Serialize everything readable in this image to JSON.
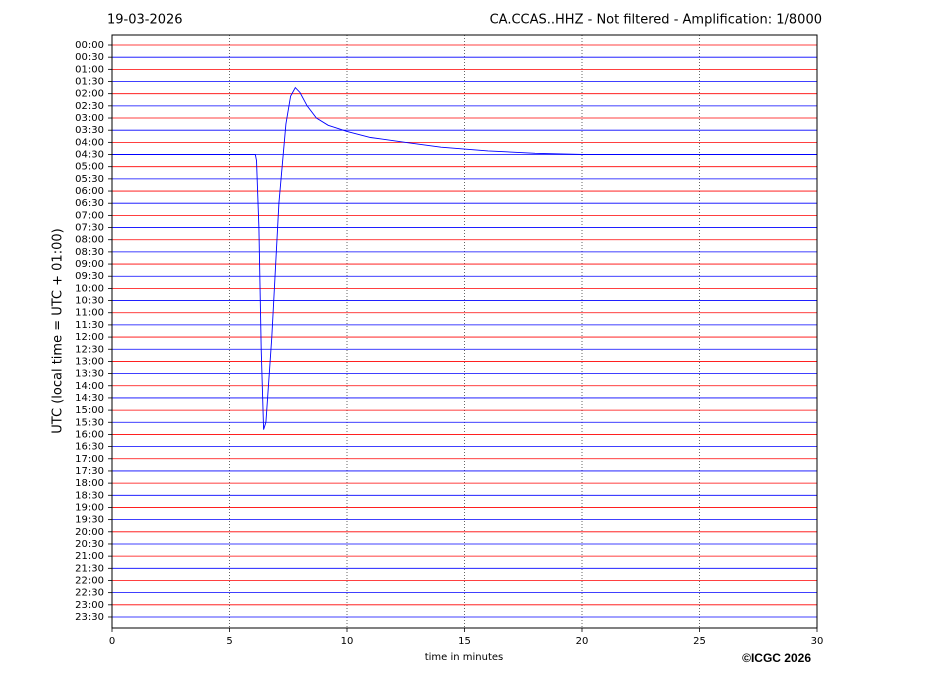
{
  "chart_data": {
    "type": "helicorder",
    "date": "19-03-2026",
    "title": "CA.CCAS..HHZ - Not filtered - Amplification: 1/8000",
    "ylabel": "UTC (local time = UTC + 01:00)",
    "xlabel": "time in minutes",
    "copyright": "©ICGC 2026",
    "categories": [
      "00:00",
      "00:30",
      "01:00",
      "01:30",
      "02:00",
      "02:30",
      "03:00",
      "03:30",
      "04:00",
      "04:30",
      "05:00",
      "05:30",
      "06:00",
      "06:30",
      "07:00",
      "07:30",
      "08:00",
      "08:30",
      "09:00",
      "09:30",
      "10:00",
      "10:30",
      "11:00",
      "11:30",
      "12:00",
      "12:30",
      "13:00",
      "13:30",
      "14:00",
      "14:30",
      "15:00",
      "15:30",
      "16:00",
      "16:30",
      "17:00",
      "17:30",
      "18:00",
      "18:30",
      "19:00",
      "19:30",
      "20:00",
      "20:30",
      "21:00",
      "21:30",
      "22:00",
      "22:30",
      "23:00",
      "23:30"
    ],
    "trace_colors": [
      "#ff0000",
      "#0000ff"
    ],
    "xlim": [
      0,
      30
    ],
    "xticks": [
      0,
      5,
      10,
      15,
      20,
      25,
      30
    ],
    "grid": true,
    "event": {
      "color": "#0000ff",
      "x": [
        0,
        6.1,
        6.15,
        6.25,
        6.35,
        6.45,
        6.55,
        6.8,
        7.1,
        7.4,
        7.6,
        7.8,
        8.0,
        8.3,
        8.7,
        9.2,
        10,
        11,
        12.5,
        14,
        16,
        18,
        20,
        30
      ],
      "y": [
        9,
        9,
        9.5,
        15,
        25,
        31.6,
        31,
        24,
        13,
        6.5,
        4.2,
        3.5,
        3.9,
        5.0,
        6.0,
        6.6,
        7.1,
        7.6,
        8.0,
        8.4,
        8.7,
        8.9,
        9.0,
        9.0
      ]
    }
  }
}
